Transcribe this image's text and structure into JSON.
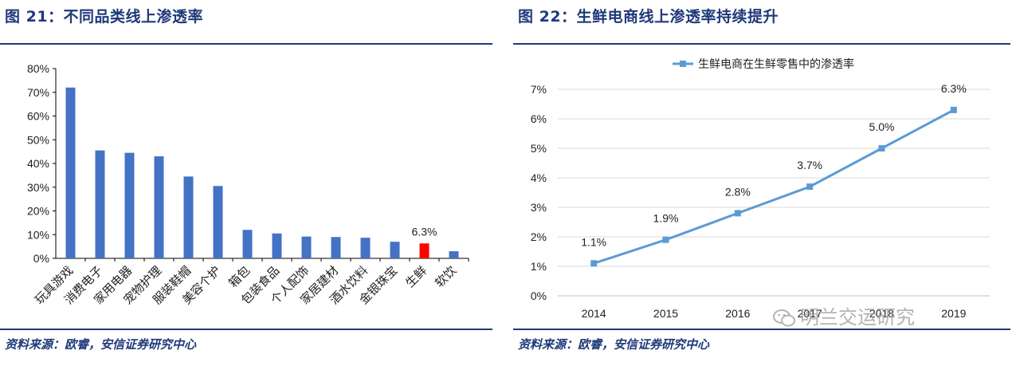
{
  "left": {
    "title": "图 21：不同品类线上渗透率",
    "source": "资料来源：欧睿，安信证券研究中心"
  },
  "right": {
    "title": "图 22：生鲜电商线上渗透率持续提升",
    "source": "资料来源：欧睿，安信证券研究中心"
  },
  "watermark": "明兰交运研究",
  "chart_data": [
    {
      "type": "bar",
      "categories": [
        "玩具游戏",
        "消费电子",
        "家用电器",
        "宠物护理",
        "服装鞋帽",
        "美容个护",
        "箱包",
        "包装食品",
        "个人配饰",
        "家居建材",
        "酒水饮料",
        "金银珠宝",
        "生鲜",
        "软饮"
      ],
      "values": [
        72,
        45.5,
        44.5,
        43,
        34.5,
        30.5,
        12,
        10.5,
        9.2,
        9,
        8.7,
        7,
        6.3,
        3
      ],
      "value_unit": "%",
      "highlight_index": 12,
      "highlight_label": "6.3%",
      "ylim": [
        0,
        80
      ],
      "yticks": [
        "0%",
        "10%",
        "20%",
        "30%",
        "40%",
        "50%",
        "60%",
        "70%",
        "80%"
      ],
      "colors": {
        "bar": "#4472c4",
        "highlight": "#ff0000"
      },
      "grid": false
    },
    {
      "type": "line",
      "x": [
        "2014",
        "2015",
        "2016",
        "2017",
        "2018",
        "2019"
      ],
      "series": [
        {
          "name": "生鲜电商在生鲜零售中的渗透率",
          "values": [
            1.1,
            1.9,
            2.8,
            3.7,
            5.0,
            6.3
          ],
          "labels": [
            "1.1%",
            "1.9%",
            "2.8%",
            "3.7%",
            "5.0%",
            "6.3%"
          ]
        }
      ],
      "ylim": [
        0,
        7
      ],
      "yticks": [
        "0%",
        "1%",
        "2%",
        "3%",
        "4%",
        "5%",
        "6%",
        "7%"
      ],
      "legend_position": "top-center",
      "grid": true,
      "colors": {
        "line": "#5b9bd5",
        "grid": "#d9d9d9"
      }
    }
  ]
}
